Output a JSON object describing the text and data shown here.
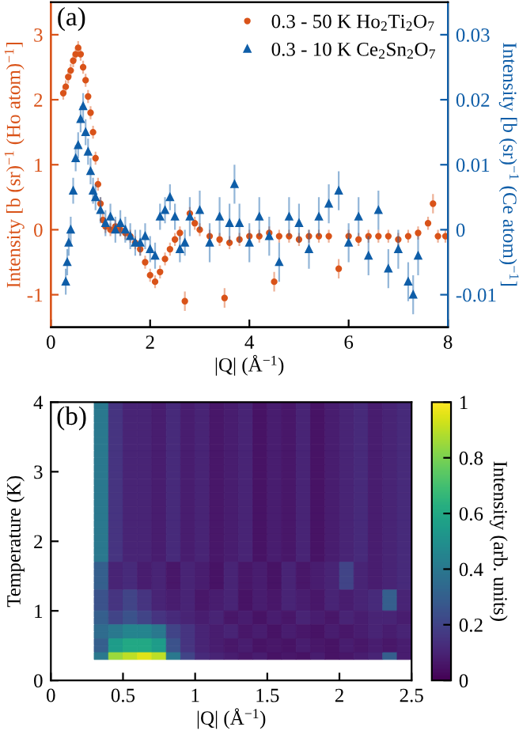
{
  "chart_data": [
    {
      "type": "scatter",
      "xlabel": "|Q| (Å$^{−1}$)",
      "ylabel": "Intensity [b (sr)$^{−1}$ (Ho atom)$^{−1}$]",
      "y2label": "Intensity [b (sr)$^{−1}$ (Ce atom)$^{−1}$]",
      "annotations": [
        "(a)"
      ],
      "xlim": [
        0,
        8
      ],
      "xticks": [
        0,
        2,
        4,
        6,
        8
      ],
      "ylim": [
        -1.5,
        3.5
      ],
      "yticks": [
        -1,
        0,
        1,
        2,
        3
      ],
      "y2lim": [
        -0.015,
        0.035
      ],
      "y2ticks": [
        -0.01,
        0,
        0.01,
        0.02,
        0.03
      ],
      "legend": "top right",
      "grid": false,
      "series": [
        {
          "name": "0.3 - 50 K Ho$_{2}$Ti$_{2}$O$_{7}$",
          "color": "#d95319",
          "marker": "circle",
          "axis": "y",
          "x": [
            0.25,
            0.3,
            0.35,
            0.4,
            0.45,
            0.5,
            0.55,
            0.6,
            0.65,
            0.7,
            0.75,
            0.8,
            0.85,
            0.9,
            0.95,
            1.0,
            1.05,
            1.1,
            1.2,
            1.3,
            1.4,
            1.5,
            1.6,
            1.7,
            1.8,
            1.9,
            2.0,
            2.1,
            2.2,
            2.3,
            2.4,
            2.5,
            2.6,
            2.7,
            2.8,
            2.9,
            3.0,
            3.2,
            3.4,
            3.5,
            3.6,
            3.8,
            4.0,
            4.2,
            4.4,
            4.5,
            4.6,
            4.8,
            5.0,
            5.2,
            5.4,
            5.6,
            5.8,
            6.0,
            6.2,
            6.4,
            6.6,
            6.8,
            7.0,
            7.2,
            7.4,
            7.6,
            7.7,
            7.8,
            7.95
          ],
          "values": [
            2.1,
            2.2,
            2.35,
            2.45,
            2.6,
            2.7,
            2.8,
            2.7,
            2.5,
            2.3,
            2.05,
            1.8,
            1.5,
            1.1,
            0.7,
            0.4,
            0.15,
            0.05,
            0.0,
            0.05,
            0.0,
            -0.05,
            -0.1,
            -0.2,
            -0.3,
            -0.5,
            -0.7,
            -0.8,
            -0.65,
            -0.45,
            -0.3,
            -0.15,
            -0.05,
            -1.1,
            0.25,
            0.1,
            0.0,
            -0.1,
            -0.15,
            -1.05,
            -0.2,
            -0.15,
            -0.1,
            -0.1,
            -0.05,
            -0.8,
            -0.1,
            -0.1,
            -0.15,
            -0.1,
            -0.1,
            -0.1,
            -0.6,
            -0.1,
            -0.15,
            -0.1,
            -0.1,
            -0.1,
            -0.15,
            -0.1,
            -0.05,
            0.1,
            0.4,
            -0.1,
            -0.1
          ],
          "errors": [
            0.1,
            0.1,
            0.1,
            0.1,
            0.1,
            0.1,
            0.1,
            0.1,
            0.1,
            0.1,
            0.1,
            0.1,
            0.1,
            0.1,
            0.1,
            0.1,
            0.1,
            0.1,
            0.1,
            0.1,
            0.1,
            0.1,
            0.1,
            0.1,
            0.1,
            0.1,
            0.1,
            0.1,
            0.1,
            0.1,
            0.1,
            0.1,
            0.1,
            0.15,
            0.1,
            0.1,
            0.1,
            0.1,
            0.1,
            0.15,
            0.1,
            0.1,
            0.1,
            0.1,
            0.1,
            0.15,
            0.1,
            0.1,
            0.1,
            0.1,
            0.1,
            0.1,
            0.15,
            0.1,
            0.1,
            0.1,
            0.1,
            0.1,
            0.1,
            0.1,
            0.1,
            0.1,
            0.15,
            0.1,
            0.1
          ]
        },
        {
          "name": "0.3 - 10 K Ce$_{2}$Sn$_{2}$O$_{7}$",
          "color": "#0f5ea8",
          "marker": "triangle",
          "axis": "y2",
          "x": [
            0.3,
            0.33,
            0.36,
            0.4,
            0.45,
            0.5,
            0.55,
            0.6,
            0.65,
            0.7,
            0.75,
            0.8,
            0.85,
            0.9,
            1.0,
            1.1,
            1.2,
            1.3,
            1.4,
            1.5,
            1.6,
            1.7,
            1.8,
            1.9,
            2.0,
            2.1,
            2.2,
            2.3,
            2.4,
            2.5,
            2.6,
            2.7,
            2.8,
            3.0,
            3.2,
            3.4,
            3.6,
            3.7,
            3.8,
            4.0,
            4.2,
            4.4,
            4.6,
            4.8,
            5.0,
            5.2,
            5.4,
            5.6,
            5.8,
            6.0,
            6.2,
            6.4,
            6.6,
            6.8,
            7.0,
            7.2,
            7.3,
            7.4
          ],
          "values": [
            -0.008,
            -0.005,
            -0.002,
            0.0,
            0.006,
            0.011,
            0.013,
            0.017,
            0.019,
            0.015,
            0.012,
            0.009,
            0.006,
            0.005,
            0.003,
            0.001,
            0.002,
            0.0,
            0.001,
            0.0,
            -0.001,
            -0.002,
            -0.002,
            -0.001,
            -0.003,
            -0.004,
            0.002,
            0.003,
            0.005,
            0.002,
            -0.003,
            -0.002,
            0.002,
            0.003,
            -0.002,
            0.002,
            0.001,
            0.007,
            0.001,
            -0.002,
            0.002,
            -0.001,
            -0.005,
            0.002,
            0.001,
            -0.003,
            0.002,
            0.004,
            0.006,
            -0.002,
            0.002,
            -0.004,
            0.003,
            -0.006,
            -0.003,
            -0.008,
            -0.01,
            -0.004
          ],
          "errors": [
            0.002,
            0.002,
            0.002,
            0.002,
            0.002,
            0.002,
            0.002,
            0.002,
            0.002,
            0.002,
            0.002,
            0.002,
            0.002,
            0.002,
            0.002,
            0.002,
            0.002,
            0.002,
            0.002,
            0.002,
            0.002,
            0.002,
            0.002,
            0.002,
            0.002,
            0.002,
            0.002,
            0.002,
            0.002,
            0.002,
            0.002,
            0.002,
            0.003,
            0.003,
            0.003,
            0.003,
            0.003,
            0.003,
            0.003,
            0.003,
            0.003,
            0.003,
            0.003,
            0.003,
            0.003,
            0.003,
            0.003,
            0.003,
            0.003,
            0.003,
            0.003,
            0.003,
            0.003,
            0.003,
            0.003,
            0.003,
            0.003,
            0.003
          ]
        }
      ]
    },
    {
      "type": "heatmap",
      "xlabel": "|Q| (Å$^{−1}$)",
      "ylabel": "Temperature (K)",
      "clabel": "Intensity (arb. units)",
      "annotations": [
        "(b)"
      ],
      "xlim": [
        0,
        2.5
      ],
      "xticks": [
        0,
        0.5,
        1,
        1.5,
        2,
        2.5
      ],
      "ylim": [
        0,
        4
      ],
      "yticks": [
        0,
        1,
        2,
        3,
        4
      ],
      "clim": [
        0,
        1
      ],
      "cticks": [
        0,
        0.2,
        0.4,
        0.6,
        0.8,
        1
      ],
      "x": [
        0.05,
        0.15,
        0.25,
        0.35,
        0.45,
        0.55,
        0.65,
        0.75,
        0.85,
        0.95,
        1.05,
        1.15,
        1.25,
        1.35,
        1.45,
        1.55,
        1.65,
        1.75,
        1.85,
        1.95,
        2.05,
        2.15,
        2.25,
        2.35,
        2.45
      ],
      "y": [
        3.95,
        3.85,
        3.75,
        3.65,
        3.55,
        3.45,
        3.35,
        3.25,
        3.15,
        3.05,
        2.95,
        2.85,
        2.75,
        2.65,
        2.55,
        2.45,
        2.35,
        2.25,
        2.15,
        2.05,
        1.95,
        1.85,
        1.75,
        1.65,
        1.55,
        1.45,
        1.35,
        1.25,
        1.15,
        1.05,
        0.95,
        0.85,
        0.75,
        0.65,
        0.55,
        0.45,
        0.35
      ],
      "cells": [
        [
          null,
          null,
          null,
          0.4,
          0.15,
          0.1,
          0.1,
          0.08,
          0.12,
          0.08,
          0.1,
          0.06,
          0.08,
          0.1,
          0.05,
          0.08,
          0.06,
          0.1,
          0.05,
          0.08,
          0.1,
          0.12,
          0.08,
          0.1,
          0.12
        ],
        [
          null,
          null,
          null,
          0.4,
          0.15,
          0.1,
          0.1,
          0.08,
          0.12,
          0.08,
          0.1,
          0.06,
          0.08,
          0.1,
          0.05,
          0.08,
          0.06,
          0.1,
          0.05,
          0.08,
          0.1,
          0.12,
          0.08,
          0.1,
          0.12
        ],
        [
          null,
          null,
          null,
          0.4,
          0.15,
          0.1,
          0.1,
          0.08,
          0.12,
          0.08,
          0.1,
          0.06,
          0.08,
          0.1,
          0.05,
          0.08,
          0.06,
          0.1,
          0.05,
          0.08,
          0.1,
          0.12,
          0.08,
          0.1,
          0.12
        ],
        [
          null,
          null,
          null,
          0.4,
          0.15,
          0.1,
          0.1,
          0.08,
          0.12,
          0.08,
          0.1,
          0.06,
          0.08,
          0.1,
          0.05,
          0.08,
          0.06,
          0.1,
          0.05,
          0.08,
          0.1,
          0.12,
          0.08,
          0.1,
          0.12
        ],
        [
          null,
          null,
          null,
          0.4,
          0.15,
          0.1,
          0.1,
          0.08,
          0.12,
          0.08,
          0.1,
          0.06,
          0.08,
          0.1,
          0.05,
          0.08,
          0.06,
          0.1,
          0.05,
          0.08,
          0.1,
          0.12,
          0.08,
          0.1,
          0.12
        ],
        [
          null,
          null,
          null,
          0.4,
          0.15,
          0.1,
          0.1,
          0.08,
          0.12,
          0.08,
          0.1,
          0.06,
          0.08,
          0.1,
          0.05,
          0.08,
          0.06,
          0.1,
          0.05,
          0.08,
          0.1,
          0.12,
          0.08,
          0.1,
          0.12
        ],
        [
          null,
          null,
          null,
          0.4,
          0.15,
          0.1,
          0.1,
          0.08,
          0.12,
          0.08,
          0.1,
          0.06,
          0.08,
          0.1,
          0.05,
          0.08,
          0.06,
          0.1,
          0.05,
          0.08,
          0.1,
          0.12,
          0.08,
          0.1,
          0.12
        ],
        [
          null,
          null,
          null,
          0.4,
          0.15,
          0.1,
          0.1,
          0.08,
          0.12,
          0.08,
          0.1,
          0.06,
          0.08,
          0.1,
          0.05,
          0.08,
          0.06,
          0.1,
          0.05,
          0.08,
          0.1,
          0.12,
          0.08,
          0.1,
          0.12
        ],
        [
          null,
          null,
          null,
          0.4,
          0.15,
          0.1,
          0.1,
          0.08,
          0.12,
          0.08,
          0.1,
          0.06,
          0.08,
          0.1,
          0.05,
          0.08,
          0.06,
          0.1,
          0.05,
          0.08,
          0.1,
          0.12,
          0.08,
          0.1,
          0.12
        ],
        [
          null,
          null,
          null,
          0.4,
          0.15,
          0.1,
          0.1,
          0.08,
          0.12,
          0.08,
          0.1,
          0.06,
          0.08,
          0.1,
          0.05,
          0.08,
          0.06,
          0.1,
          0.05,
          0.08,
          0.1,
          0.12,
          0.08,
          0.1,
          0.12
        ],
        [
          null,
          null,
          null,
          0.4,
          0.15,
          0.1,
          0.1,
          0.08,
          0.12,
          0.08,
          0.1,
          0.06,
          0.08,
          0.1,
          0.05,
          0.08,
          0.06,
          0.1,
          0.05,
          0.08,
          0.1,
          0.12,
          0.08,
          0.1,
          0.12
        ],
        [
          null,
          null,
          null,
          0.4,
          0.15,
          0.1,
          0.1,
          0.08,
          0.12,
          0.08,
          0.1,
          0.06,
          0.08,
          0.1,
          0.05,
          0.08,
          0.06,
          0.1,
          0.05,
          0.08,
          0.1,
          0.12,
          0.08,
          0.1,
          0.12
        ],
        [
          null,
          null,
          null,
          0.4,
          0.15,
          0.1,
          0.1,
          0.08,
          0.12,
          0.08,
          0.1,
          0.06,
          0.08,
          0.1,
          0.05,
          0.08,
          0.06,
          0.1,
          0.05,
          0.08,
          0.1,
          0.12,
          0.08,
          0.1,
          0.12
        ],
        [
          null,
          null,
          null,
          0.4,
          0.15,
          0.1,
          0.1,
          0.08,
          0.12,
          0.08,
          0.1,
          0.06,
          0.08,
          0.1,
          0.05,
          0.08,
          0.06,
          0.1,
          0.05,
          0.08,
          0.1,
          0.12,
          0.08,
          0.1,
          0.12
        ],
        [
          null,
          null,
          null,
          0.4,
          0.15,
          0.1,
          0.1,
          0.08,
          0.12,
          0.08,
          0.1,
          0.06,
          0.08,
          0.1,
          0.05,
          0.08,
          0.06,
          0.1,
          0.05,
          0.08,
          0.1,
          0.12,
          0.08,
          0.1,
          0.12
        ],
        [
          null,
          null,
          null,
          0.4,
          0.15,
          0.1,
          0.1,
          0.08,
          0.12,
          0.08,
          0.1,
          0.06,
          0.08,
          0.1,
          0.05,
          0.08,
          0.06,
          0.1,
          0.05,
          0.08,
          0.1,
          0.12,
          0.08,
          0.1,
          0.12
        ],
        [
          null,
          null,
          null,
          0.4,
          0.15,
          0.1,
          0.1,
          0.08,
          0.12,
          0.08,
          0.1,
          0.06,
          0.08,
          0.1,
          0.05,
          0.08,
          0.06,
          0.1,
          0.05,
          0.08,
          0.1,
          0.12,
          0.08,
          0.1,
          0.12
        ],
        [
          null,
          null,
          null,
          0.4,
          0.15,
          0.1,
          0.1,
          0.08,
          0.12,
          0.08,
          0.1,
          0.06,
          0.08,
          0.1,
          0.05,
          0.08,
          0.06,
          0.1,
          0.05,
          0.08,
          0.1,
          0.12,
          0.08,
          0.1,
          0.12
        ],
        [
          null,
          null,
          null,
          0.4,
          0.15,
          0.1,
          0.1,
          0.08,
          0.12,
          0.08,
          0.1,
          0.06,
          0.08,
          0.1,
          0.05,
          0.08,
          0.06,
          0.1,
          0.05,
          0.08,
          0.1,
          0.12,
          0.08,
          0.1,
          0.12
        ],
        [
          null,
          null,
          null,
          0.4,
          0.15,
          0.1,
          0.1,
          0.08,
          0.12,
          0.08,
          0.1,
          0.06,
          0.08,
          0.1,
          0.05,
          0.08,
          0.06,
          0.1,
          0.05,
          0.08,
          0.1,
          0.12,
          0.08,
          0.1,
          0.12
        ],
        [
          null,
          null,
          null,
          0.4,
          0.15,
          0.1,
          0.1,
          0.08,
          0.12,
          0.08,
          0.1,
          0.06,
          0.08,
          0.1,
          0.05,
          0.08,
          0.06,
          0.1,
          0.05,
          0.08,
          0.1,
          0.12,
          0.08,
          0.1,
          0.12
        ],
        [
          null,
          null,
          null,
          0.4,
          0.15,
          0.1,
          0.1,
          0.08,
          0.12,
          0.08,
          0.1,
          0.06,
          0.08,
          0.1,
          0.05,
          0.08,
          0.06,
          0.1,
          0.05,
          0.08,
          0.1,
          0.12,
          0.08,
          0.1,
          0.12
        ],
        [
          null,
          null,
          null,
          0.4,
          0.15,
          0.1,
          0.1,
          0.08,
          0.12,
          0.08,
          0.1,
          0.06,
          0.08,
          0.1,
          0.05,
          0.08,
          0.06,
          0.1,
          0.05,
          0.08,
          0.1,
          0.12,
          0.08,
          0.1,
          0.12
        ],
        [
          null,
          null,
          null,
          0.3,
          0.1,
          0.12,
          0.08,
          0.1,
          0.06,
          0.1,
          0.08,
          0.05,
          0.1,
          0.06,
          0.08,
          0.05,
          0.1,
          0.06,
          0.08,
          0.1,
          0.2,
          0.1,
          0.08,
          0.1,
          0.12
        ],
        [
          null,
          null,
          null,
          0.3,
          0.1,
          0.12,
          0.08,
          0.1,
          0.06,
          0.1,
          0.08,
          0.05,
          0.1,
          0.06,
          0.08,
          0.05,
          0.1,
          0.06,
          0.08,
          0.1,
          0.2,
          0.1,
          0.08,
          0.1,
          0.12
        ],
        [
          null,
          null,
          null,
          0.3,
          0.1,
          0.12,
          0.08,
          0.1,
          0.06,
          0.1,
          0.08,
          0.05,
          0.1,
          0.06,
          0.08,
          0.05,
          0.1,
          0.06,
          0.08,
          0.1,
          0.2,
          0.1,
          0.08,
          0.1,
          0.12
        ],
        [
          null,
          null,
          null,
          0.3,
          0.1,
          0.12,
          0.08,
          0.1,
          0.06,
          0.1,
          0.08,
          0.05,
          0.1,
          0.06,
          0.08,
          0.05,
          0.1,
          0.06,
          0.08,
          0.1,
          0.2,
          0.1,
          0.08,
          0.1,
          0.12
        ],
        [
          null,
          null,
          null,
          0.25,
          0.15,
          0.2,
          0.15,
          0.1,
          0.08,
          0.1,
          0.06,
          0.08,
          0.1,
          0.05,
          0.08,
          0.06,
          0.1,
          0.08,
          0.06,
          0.1,
          0.08,
          0.1,
          0.12,
          0.3,
          0.1
        ],
        [
          null,
          null,
          null,
          0.25,
          0.15,
          0.2,
          0.15,
          0.1,
          0.08,
          0.1,
          0.06,
          0.08,
          0.1,
          0.05,
          0.08,
          0.06,
          0.1,
          0.08,
          0.06,
          0.1,
          0.08,
          0.1,
          0.12,
          0.3,
          0.1
        ],
        [
          null,
          null,
          null,
          0.25,
          0.15,
          0.2,
          0.15,
          0.1,
          0.08,
          0.1,
          0.06,
          0.08,
          0.1,
          0.05,
          0.08,
          0.06,
          0.1,
          0.08,
          0.06,
          0.1,
          0.08,
          0.1,
          0.12,
          0.3,
          0.1
        ],
        [
          null,
          null,
          null,
          0.3,
          0.2,
          0.25,
          0.2,
          0.15,
          0.12,
          0.1,
          0.08,
          0.1,
          0.06,
          0.08,
          0.05,
          0.08,
          0.06,
          0.1,
          0.08,
          0.06,
          0.1,
          0.08,
          0.1,
          0.1,
          0.08
        ],
        [
          null,
          null,
          null,
          0.3,
          0.2,
          0.25,
          0.2,
          0.15,
          0.12,
          0.1,
          0.08,
          0.1,
          0.06,
          0.08,
          0.05,
          0.08,
          0.06,
          0.1,
          0.08,
          0.06,
          0.1,
          0.08,
          0.1,
          0.1,
          0.08
        ],
        [
          null,
          null,
          null,
          0.35,
          0.4,
          0.45,
          0.45,
          0.4,
          0.2,
          0.15,
          0.1,
          0.08,
          0.1,
          0.06,
          0.08,
          0.05,
          0.08,
          0.06,
          0.05,
          0.08,
          0.06,
          0.08,
          0.1,
          0.08,
          0.1
        ],
        [
          null,
          null,
          null,
          0.35,
          0.4,
          0.45,
          0.45,
          0.4,
          0.2,
          0.15,
          0.1,
          0.08,
          0.1,
          0.06,
          0.08,
          0.05,
          0.08,
          0.06,
          0.05,
          0.08,
          0.06,
          0.08,
          0.1,
          0.08,
          0.1
        ],
        [
          null,
          null,
          null,
          0.3,
          0.55,
          0.6,
          0.6,
          0.55,
          0.25,
          0.15,
          0.1,
          0.08,
          0.06,
          0.08,
          0.05,
          0.06,
          0.05,
          0.08,
          0.06,
          0.05,
          0.08,
          0.06,
          0.08,
          0.06,
          0.08
        ],
        [
          null,
          null,
          null,
          0.3,
          0.55,
          0.6,
          0.6,
          0.55,
          0.25,
          0.15,
          0.1,
          0.08,
          0.06,
          0.08,
          0.05,
          0.06,
          0.05,
          0.08,
          0.06,
          0.05,
          0.08,
          0.06,
          0.08,
          0.06,
          0.08
        ],
        [
          null,
          null,
          null,
          0.4,
          0.85,
          0.9,
          0.95,
          0.9,
          0.4,
          0.2,
          0.12,
          0.1,
          0.08,
          0.06,
          0.08,
          0.05,
          0.06,
          0.05,
          0.08,
          0.05,
          0.06,
          0.08,
          0.1,
          0.3,
          0.08
        ]
      ]
    }
  ]
}
